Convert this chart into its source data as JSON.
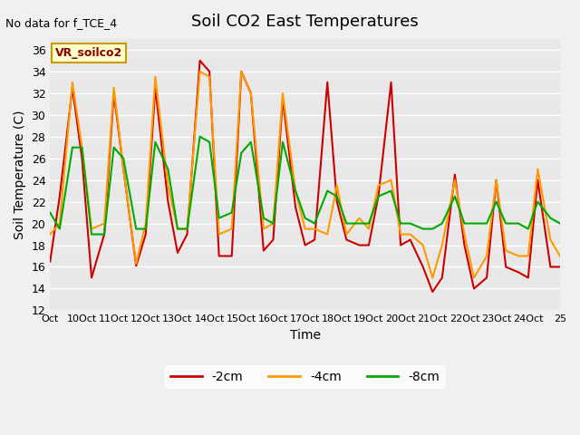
{
  "title": "Soil CO2 East Temperatures",
  "xlabel": "Time",
  "ylabel": "Soil Temperature (C)",
  "no_data_text": "No data for f_TCE_4",
  "legend_label_text": "VR_soilco2",
  "ylim": [
    12,
    37
  ],
  "yticks": [
    12,
    14,
    16,
    18,
    20,
    22,
    24,
    26,
    28,
    30,
    32,
    34,
    36
  ],
  "xtick_labels": [
    "Oct",
    "10Oct",
    "11Oct",
    "12Oct",
    "13Oct",
    "14Oct",
    "15Oct",
    "16Oct",
    "17Oct",
    "18Oct",
    "19Oct",
    "20Oct",
    "21Oct",
    "22Oct",
    "23Oct",
    "24Oct",
    "25"
  ],
  "colors": {
    "2cm": "#cc0000",
    "4cm": "#ff9900",
    "8cm": "#00aa00"
  },
  "legend_entries": [
    "-2cm",
    "-4cm",
    "-8cm"
  ],
  "background_color": "#e8e8e8",
  "grid_color": "#ffffff",
  "x_2cm": [
    0,
    0.3,
    0.7,
    1,
    1.3,
    1.7,
    2,
    2.3,
    2.7,
    3,
    3.3,
    3.7,
    4,
    4.3,
    4.7,
    5,
    5.3,
    5.7,
    6,
    6.3,
    6.7,
    7,
    7.3,
    7.7,
    8,
    8.3,
    8.7,
    9,
    9.3,
    9.7,
    10,
    10.3,
    10.7,
    11,
    11.3,
    11.7,
    12,
    12.3,
    12.7,
    13,
    13.3,
    13.7,
    14,
    14.3,
    14.7,
    15,
    15.3,
    15.7,
    16
  ],
  "y_2cm": [
    16.5,
    22.5,
    32.5,
    26,
    15,
    19,
    32,
    25,
    16.1,
    19,
    32.5,
    22,
    17.3,
    19,
    35,
    34,
    17,
    17,
    34,
    32,
    17.5,
    18.5,
    31.5,
    21.5,
    18,
    18.5,
    33,
    22,
    18.5,
    18,
    18,
    22.5,
    33,
    18,
    18.5,
    16,
    13.7,
    15,
    24.5,
    18,
    14,
    15,
    24,
    16,
    15.5,
    15,
    24,
    16,
    16
  ],
  "x_4cm": [
    0,
    0.3,
    0.7,
    1,
    1.3,
    1.7,
    2,
    2.3,
    2.7,
    3,
    3.3,
    3.7,
    4,
    4.3,
    4.7,
    5,
    5.3,
    5.7,
    6,
    6.3,
    6.7,
    7,
    7.3,
    7.7,
    8,
    8.3,
    8.7,
    9,
    9.3,
    9.7,
    10,
    10.3,
    10.7,
    11,
    11.3,
    11.7,
    12,
    12.3,
    12.7,
    13,
    13.3,
    13.7,
    14,
    14.3,
    14.7,
    15,
    15.3,
    15.7,
    16
  ],
  "y_4cm": [
    19,
    20,
    33,
    27,
    19.5,
    20,
    32.5,
    25,
    16.3,
    20,
    33.5,
    23.5,
    19.5,
    19.5,
    34,
    33.5,
    19,
    19.5,
    34,
    32,
    19.5,
    20,
    32,
    23,
    19.5,
    19.5,
    19,
    23.5,
    19,
    20.5,
    19.5,
    23.5,
    24,
    19,
    19,
    18,
    15,
    18,
    24,
    19,
    15,
    17,
    24,
    17.5,
    17,
    17,
    25,
    18.5,
    17
  ],
  "x_8cm": [
    0,
    0.3,
    0.7,
    1,
    1.3,
    1.7,
    2,
    2.3,
    2.7,
    3,
    3.3,
    3.7,
    4,
    4.3,
    4.7,
    5,
    5.3,
    5.7,
    6,
    6.3,
    6.7,
    7,
    7.3,
    7.7,
    8,
    8.3,
    8.7,
    9,
    9.3,
    9.7,
    10,
    10.3,
    10.7,
    11,
    11.3,
    11.7,
    12,
    12.3,
    12.7,
    13,
    13.3,
    13.7,
    14,
    14.3,
    14.7,
    15,
    15.3,
    15.7,
    16
  ],
  "y_8cm": [
    21,
    19.5,
    27,
    27,
    19,
    19,
    27,
    26,
    19.5,
    19.5,
    27.5,
    25,
    19.5,
    19.5,
    28,
    27.5,
    20.5,
    21,
    26.5,
    27.5,
    20.5,
    20,
    27.5,
    23,
    20.5,
    20,
    23,
    22.5,
    20,
    20,
    20,
    22.5,
    23,
    20,
    20,
    19.5,
    19.5,
    20,
    22.5,
    20,
    20,
    20,
    22,
    20,
    20,
    19.5,
    22,
    20.5,
    20
  ]
}
